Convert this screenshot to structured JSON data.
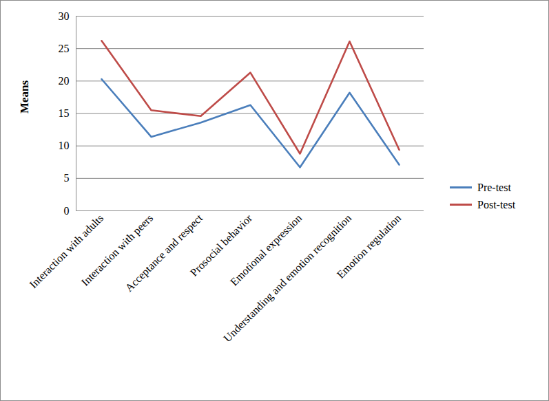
{
  "chart_data": {
    "type": "line",
    "y_label": "Means",
    "categories": [
      "Interaction with adults",
      "Interaction with peers",
      "Acceptance and respect",
      "Prosocial behavior",
      "Emotional expression",
      "Understanding and emotion recognition",
      "Emotion regulation"
    ],
    "series": [
      {
        "name": "Pre-test",
        "color": "#4a7ebb",
        "values": [
          20.3,
          11.4,
          13.6,
          16.3,
          6.7,
          18.2,
          7.1
        ]
      },
      {
        "name": "Post-test",
        "color": "#be4b48",
        "values": [
          26.2,
          15.5,
          14.6,
          21.3,
          8.8,
          26.1,
          9.4
        ]
      }
    ],
    "ylim": [
      0,
      30
    ],
    "yticks": [
      0,
      5,
      10,
      15,
      20,
      25,
      30
    ],
    "grid": true,
    "legend": "right"
  }
}
